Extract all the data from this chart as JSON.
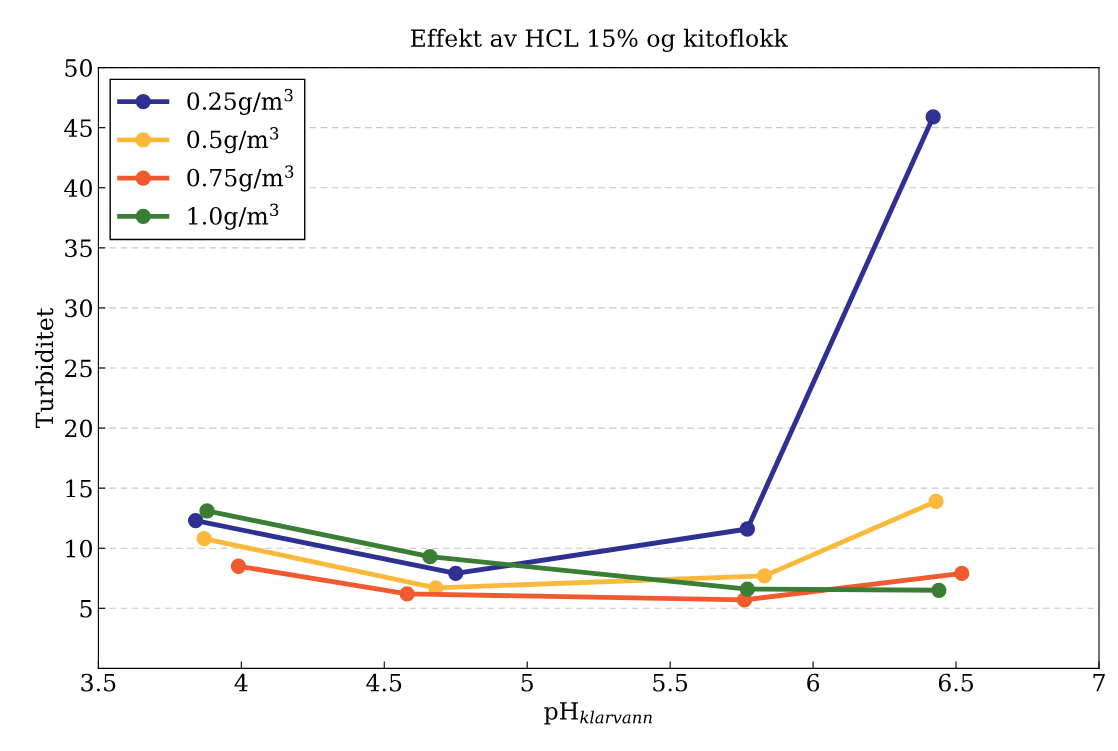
{
  "chart_data": {
    "type": "line",
    "title": "Effekt av HCL 15% og kitoflokk",
    "xlabel": "pH$_{klarvann}$",
    "ylabel": "Turbiditet",
    "xlim": [
      3.5,
      7
    ],
    "xticks": [
      3.5,
      4,
      4.5,
      5,
      5.5,
      6,
      6.5,
      7
    ],
    "ylim": [
      0,
      50
    ],
    "yticks": [
      5,
      10,
      15,
      20,
      25,
      30,
      35,
      40,
      45,
      50
    ],
    "grid": "y",
    "legend": "top left",
    "marker": "circle",
    "line_style": "solid",
    "series": [
      {
        "name": "0.25g/m$^{3}$",
        "color": "#2e3192",
        "x": [
          3.84,
          4.75,
          5.77,
          6.42
        ],
        "values": [
          12.3,
          7.9,
          11.6,
          45.9
        ]
      },
      {
        "name": "0.5g/m$^{3}$",
        "color": "#fbb93c",
        "x": [
          3.87,
          4.68,
          5.83,
          6.43
        ],
        "values": [
          10.8,
          6.7,
          7.7,
          13.9
        ]
      },
      {
        "name": "0.75g/m$^{3}$",
        "color": "#f05a2f",
        "x": [
          3.99,
          4.58,
          5.76,
          6.52
        ],
        "values": [
          8.5,
          6.2,
          5.7,
          7.9
        ]
      },
      {
        "name": "1.0g/m$^{3}$",
        "color": "#3a7d34",
        "x": [
          3.88,
          4.66,
          5.77,
          6.44
        ],
        "values": [
          13.1,
          9.3,
          6.6,
          6.5
        ]
      }
    ]
  }
}
